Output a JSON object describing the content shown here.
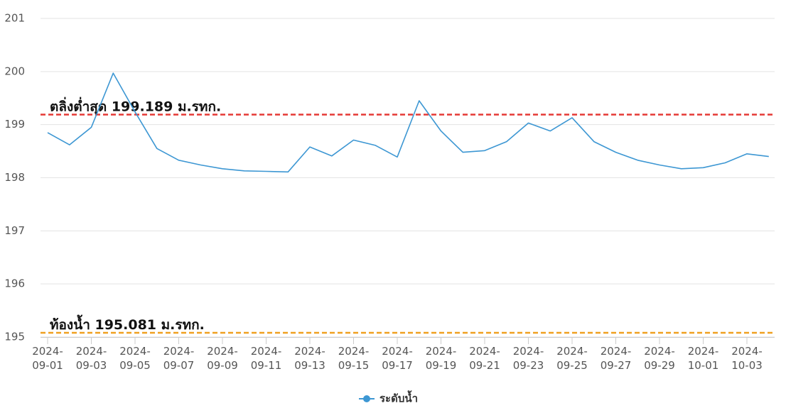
{
  "chart_data": {
    "type": "line",
    "x": [
      "2024-09-01",
      "2024-09-02",
      "2024-09-03",
      "2024-09-04",
      "2024-09-05",
      "2024-09-06",
      "2024-09-07",
      "2024-09-08",
      "2024-09-09",
      "2024-09-10",
      "2024-09-11",
      "2024-09-12",
      "2024-09-13",
      "2024-09-14",
      "2024-09-15",
      "2024-09-16",
      "2024-09-17",
      "2024-09-18",
      "2024-09-19",
      "2024-09-20",
      "2024-09-21",
      "2024-09-22",
      "2024-09-23",
      "2024-09-24",
      "2024-09-25",
      "2024-09-26",
      "2024-09-27",
      "2024-09-28",
      "2024-09-29",
      "2024-09-30",
      "2024-10-01",
      "2024-10-02",
      "2024-10-03",
      "2024-10-04"
    ],
    "series": [
      {
        "name": "ระดับน้ำ",
        "color": "#3d97d3",
        "values": [
          198.85,
          198.62,
          198.95,
          199.97,
          199.24,
          198.55,
          198.33,
          198.24,
          198.17,
          198.13,
          198.12,
          198.11,
          198.58,
          198.41,
          198.71,
          198.61,
          198.39,
          199.45,
          198.88,
          198.48,
          198.51,
          198.68,
          199.03,
          198.88,
          199.13,
          198.68,
          198.48,
          198.33,
          198.24,
          198.17,
          198.19,
          198.28,
          198.45,
          198.4
        ]
      }
    ],
    "xticks": [
      "2024-09-01",
      "2024-09-03",
      "2024-09-05",
      "2024-09-07",
      "2024-09-09",
      "2024-09-11",
      "2024-09-13",
      "2024-09-15",
      "2024-09-17",
      "2024-09-19",
      "2024-09-21",
      "2024-09-23",
      "2024-09-25",
      "2024-09-27",
      "2024-09-29",
      "2024-10-01",
      "2024-10-03"
    ],
    "ylim": [
      195,
      201
    ],
    "yticks": [
      195,
      196,
      197,
      198,
      199,
      200,
      201
    ],
    "grid": true,
    "reference_lines": [
      {
        "value": 199.189,
        "label": "ตลิ่งต่ำสุด 199.189 ม.รทก.",
        "color": "#e53935"
      },
      {
        "value": 195.081,
        "label": "ท้องน้ำ 195.081 ม.รทก.",
        "color": "#f0a020"
      }
    ],
    "legend": "bottom"
  }
}
